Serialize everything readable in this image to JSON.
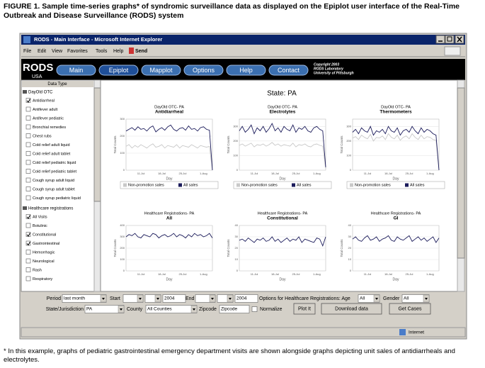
{
  "caption": "FIGURE 1. Sample time-series graphs* of syndromic surveillance data as displayed on the Epiplot user interface of the Real-Time Outbreak and Disease Surveillance (RODS) system",
  "footnote": "* In this example, graphs of pediatric gastrointestinal emergency department visits are shown alongside graphs depicting unit sales of antidiarrheals and electrolytes.",
  "window": {
    "title": "RODS - Main Interface - Microsoft Internet Explorer",
    "menu": [
      "File",
      "Edit",
      "View",
      "Favorites",
      "Tools",
      "Help"
    ],
    "send": "Send"
  },
  "nav": {
    "logo": "RODS",
    "logo_sub": "USA",
    "tabs": [
      "Main",
      "Epiplot",
      "Mapplot",
      "Options",
      "Help",
      "Contact"
    ],
    "active_tab": 1,
    "copyright": [
      "Copyright 2003",
      "RODS Laboratory",
      "University of Pittsburgh"
    ]
  },
  "sidebar": {
    "title": "Data Type",
    "groups": [
      {
        "name": "DayOld OTC",
        "items": [
          {
            "label": "Antidiarrheal",
            "checked": true
          },
          {
            "label": "Antifever adult",
            "checked": false
          },
          {
            "label": "Antifever pediatric",
            "checked": false
          },
          {
            "label": "Bronchial remedies",
            "checked": false
          },
          {
            "label": "Chest rubs",
            "checked": false
          },
          {
            "label": "Cold relief adult liquid",
            "checked": false
          },
          {
            "label": "Cold relief adult tablet",
            "checked": false
          },
          {
            "label": "Cold relief pediatric liquid",
            "checked": false
          },
          {
            "label": "Cold relief pediatric tablet",
            "checked": false
          },
          {
            "label": "Cough syrup adult liquid",
            "checked": false
          },
          {
            "label": "Cough syrup adult tablet",
            "checked": false
          },
          {
            "label": "Cough syrup pediatric liquid",
            "checked": false
          }
        ]
      },
      {
        "name": "Healthcare registrations",
        "items": [
          {
            "label": "All Visits",
            "checked": true
          },
          {
            "label": "Botulinic",
            "checked": false
          },
          {
            "label": "Constitutional",
            "checked": true
          },
          {
            "label": "Gastrointestinal",
            "checked": true
          },
          {
            "label": "Hemorrhagic",
            "checked": false
          },
          {
            "label": "Neurological",
            "checked": false
          },
          {
            "label": "Rash",
            "checked": false
          },
          {
            "label": "Respiratory",
            "checked": false
          }
        ]
      }
    ]
  },
  "state_title": "State: PA",
  "charts": [
    {
      "type": "line",
      "source": "DayOld OTC- PA",
      "title": "Antidiarrheal",
      "ylabel": "Total Counts",
      "xlabel": "Day",
      "grid": true,
      "categories": [
        null,
        null,
        null,
        null,
        null,
        "11-Jul",
        null,
        null,
        null,
        null,
        null,
        null,
        "18-Jul",
        null,
        null,
        null,
        null,
        null,
        null,
        "25-Jul",
        null,
        null,
        null,
        null,
        null,
        null,
        "1-Aug",
        null,
        null,
        null
      ],
      "ylim": [
        0,
        300
      ],
      "yticks": [
        0,
        100,
        200,
        300
      ],
      "series": [
        {
          "name": "Non-promotion sales",
          "color": "#c8c8c8",
          "values": [
            140,
            150,
            130,
            145,
            135,
            150,
            140,
            130,
            145,
            155,
            135,
            140,
            150,
            130,
            145,
            140,
            135,
            150,
            130,
            145,
            140,
            135,
            150,
            140,
            130,
            145,
            140,
            135,
            140,
            0
          ]
        },
        {
          "name": "All sales",
          "color": "#1a1a5a",
          "values": [
            230,
            240,
            250,
            235,
            255,
            240,
            245,
            230,
            250,
            260,
            225,
            240,
            250,
            235,
            255,
            265,
            240,
            230,
            245,
            250,
            235,
            260,
            240,
            245,
            230,
            250,
            255,
            240,
            235,
            0
          ]
        }
      ]
    },
    {
      "type": "line",
      "source": "DayOld OTC- PA",
      "title": "Electrolytes",
      "ylabel": "Total Counts",
      "xlabel": "Day",
      "grid": true,
      "categories": [
        null,
        null,
        null,
        null,
        null,
        "11-Jul",
        null,
        null,
        null,
        null,
        null,
        null,
        "18-Jul",
        null,
        null,
        null,
        null,
        null,
        null,
        "25-Jul",
        null,
        null,
        null,
        null,
        null,
        null,
        "1-Aug",
        null,
        null,
        null
      ],
      "ylim": [
        0,
        350
      ],
      "yticks": [
        0,
        100,
        200,
        300
      ],
      "series": [
        {
          "name": "Non-promotion sales",
          "color": "#c8c8c8",
          "values": [
            170,
            180,
            165,
            175,
            185,
            160,
            175,
            170,
            180,
            165,
            175,
            190,
            170,
            180,
            165,
            175,
            170,
            165,
            185,
            160,
            175,
            170,
            180,
            165,
            160,
            175,
            180,
            170,
            165,
            10
          ]
        },
        {
          "name": "All sales",
          "color": "#1a1a5a",
          "values": [
            270,
            300,
            260,
            280,
            310,
            250,
            290,
            270,
            300,
            260,
            285,
            320,
            270,
            290,
            260,
            300,
            280,
            270,
            310,
            260,
            290,
            280,
            300,
            270,
            260,
            290,
            300,
            280,
            270,
            20
          ]
        }
      ]
    },
    {
      "type": "line",
      "source": "DayOld OTC- PA",
      "title": "Thermometers",
      "ylabel": "Total Counts",
      "xlabel": "Day",
      "grid": true,
      "categories": [
        null,
        null,
        null,
        null,
        null,
        "11-Jul",
        null,
        null,
        null,
        null,
        null,
        null,
        "18-Jul",
        null,
        null,
        null,
        null,
        null,
        null,
        "25-Jul",
        null,
        null,
        null,
        null,
        null,
        null,
        "1-Aug",
        null,
        null,
        null
      ],
      "ylim": [
        0,
        350
      ],
      "yticks": [
        0,
        100,
        200,
        300
      ],
      "series": [
        {
          "name": "Non-promotion sales",
          "color": "#c8c8c8",
          "values": [
            220,
            230,
            210,
            240,
            225,
            215,
            245,
            200,
            225,
            220,
            235,
            210,
            250,
            225,
            215,
            240,
            205,
            225,
            235,
            215,
            250,
            225,
            210,
            240,
            215,
            230,
            225,
            210,
            205,
            0
          ]
        },
        {
          "name": "All sales",
          "color": "#1a1a5a",
          "values": [
            260,
            280,
            250,
            290,
            270,
            260,
            300,
            240,
            270,
            260,
            280,
            250,
            300,
            270,
            260,
            290,
            240,
            270,
            280,
            260,
            300,
            270,
            250,
            290,
            260,
            280,
            270,
            250,
            240,
            0
          ]
        }
      ]
    },
    {
      "type": "line",
      "source": "Healthcare Registrations- PA",
      "title": "All",
      "ylabel": "Total Counts",
      "xlabel": "Day",
      "grid": true,
      "categories": [
        null,
        null,
        null,
        null,
        null,
        "11-Jul",
        null,
        null,
        null,
        null,
        null,
        null,
        "18-Jul",
        null,
        null,
        null,
        null,
        null,
        null,
        "25-Jul",
        null,
        null,
        null,
        null,
        null,
        null,
        "1-Aug",
        null,
        null,
        null
      ],
      "ylim": [
        0,
        400
      ],
      "yticks": [
        0,
        100,
        200,
        300,
        400
      ],
      "series": [
        {
          "name": "All",
          "color": "#1a1a5a",
          "values": [
            300,
            320,
            310,
            330,
            300,
            290,
            320,
            310,
            300,
            330,
            320,
            290,
            310,
            320,
            300,
            310,
            330,
            300,
            320,
            310,
            290,
            320,
            300,
            330,
            310,
            320,
            300,
            310,
            330,
            290
          ]
        }
      ]
    },
    {
      "type": "line",
      "source": "Healthcare Registrations- PA",
      "title": "Constitutional",
      "ylabel": "Total Counts",
      "xlabel": "Day",
      "grid": true,
      "categories": [
        null,
        null,
        null,
        null,
        null,
        "11-Jul",
        null,
        null,
        null,
        null,
        null,
        null,
        "18-Jul",
        null,
        null,
        null,
        null,
        null,
        null,
        "25-Jul",
        null,
        null,
        null,
        null,
        null,
        null,
        "1-Aug",
        null,
        null,
        null
      ],
      "ylim": [
        0,
        40
      ],
      "yticks": [
        0,
        10,
        20,
        30,
        40
      ],
      "series": [
        {
          "name": "Constitutional",
          "color": "#1a1a5a",
          "values": [
            27,
            28,
            26,
            29,
            27,
            25,
            28,
            27,
            29,
            26,
            27,
            30,
            26,
            28,
            25,
            27,
            29,
            26,
            28,
            27,
            30,
            25,
            28,
            27,
            26,
            25,
            29,
            28,
            22,
            30
          ]
        }
      ]
    },
    {
      "type": "line",
      "source": "Healthcare Registrations- PA",
      "title": "GI",
      "ylabel": "Total Counts",
      "xlabel": "Day",
      "grid": true,
      "categories": [
        null,
        null,
        null,
        null,
        null,
        "11-Jul",
        null,
        null,
        null,
        null,
        null,
        null,
        "18-Jul",
        null,
        null,
        null,
        null,
        null,
        null,
        "25-Jul",
        null,
        null,
        null,
        null,
        null,
        null,
        "1-Aug",
        null,
        null,
        null
      ],
      "ylim": [
        0,
        40
      ],
      "yticks": [
        0,
        10,
        20,
        30,
        40
      ],
      "series": [
        {
          "name": "GI",
          "color": "#1a1a5a",
          "values": [
            28,
            30,
            27,
            26,
            29,
            31,
            27,
            28,
            30,
            26,
            28,
            29,
            31,
            27,
            26,
            30,
            28,
            27,
            29,
            31,
            26,
            28,
            30,
            27,
            29,
            26,
            28,
            30,
            25,
            29
          ]
        }
      ]
    }
  ],
  "form": {
    "period_label": "Period",
    "period": "last month",
    "start_label": "Start",
    "start_year": "2004",
    "end_label": "End",
    "end_year": "2004",
    "options_label": "Options for Healthcare Registrations: Age",
    "age": "All",
    "gender_label": "Gender",
    "gender": "All",
    "state_label": "State/Jurisdiction",
    "state": "PA",
    "county_label": "County",
    "county": "All Counties",
    "zip_label": "Zipcode",
    "zip": "Zipcode",
    "normalize_label": "Normalize",
    "buttons": [
      "Plot It",
      "Download data",
      "Get Cases"
    ]
  },
  "status": {
    "zone": "Internet"
  }
}
